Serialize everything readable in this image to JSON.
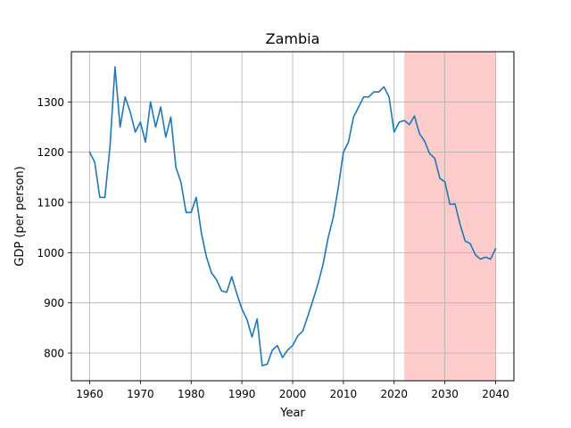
{
  "chart_data": {
    "type": "line",
    "title": "Zambia",
    "xlabel": "Year",
    "ylabel": "GDP (per person)",
    "xlim": [
      1956.4,
      2043.6
    ],
    "ylim": [
      745,
      1400
    ],
    "xticks": [
      1960,
      1970,
      1980,
      1990,
      2000,
      2010,
      2020,
      2030,
      2040
    ],
    "yticks": [
      800,
      900,
      1000,
      1100,
      1200,
      1300
    ],
    "grid": true,
    "line_color": "#1f77b4",
    "highlight": {
      "x_start": 2022,
      "x_end": 2040,
      "color": "#ff9999"
    },
    "series": [
      {
        "x": [
          1960,
          1961,
          1962,
          1963,
          1964,
          1965,
          1966,
          1967,
          1968,
          1969,
          1970,
          1971,
          1972,
          1973,
          1974,
          1975,
          1976,
          1977,
          1978,
          1979,
          1980,
          1981,
          1982,
          1983,
          1984,
          1985,
          1986,
          1987,
          1988,
          1989,
          1990,
          1991,
          1992,
          1993,
          1994,
          1995,
          1996,
          1997,
          1998,
          1999,
          2000,
          2001,
          2002,
          2003,
          2004,
          2005,
          2006,
          2007,
          2008,
          2009,
          2010,
          2011,
          2012,
          2013,
          2014,
          2015,
          2016,
          2017,
          2018,
          2019,
          2020,
          2021,
          2022,
          2023,
          2024,
          2025,
          2026,
          2027,
          2028,
          2029,
          2030,
          2031,
          2032,
          2033,
          2034,
          2035,
          2036,
          2037,
          2038,
          2039,
          2040
        ],
        "values": [
          1200,
          1180,
          1110,
          1110,
          1210,
          1370,
          1250,
          1310,
          1280,
          1240,
          1260,
          1220,
          1300,
          1250,
          1290,
          1230,
          1270,
          1170,
          1140,
          1080,
          1080,
          1110,
          1040,
          992,
          960,
          946,
          924,
          921,
          952,
          918,
          888,
          867,
          832,
          868,
          775,
          778,
          806,
          815,
          791,
          806,
          815,
          834,
          844,
          874,
          905,
          938,
          977,
          1030,
          1070,
          1130,
          1200,
          1220,
          1270,
          1290,
          1310,
          1310,
          1320,
          1320,
          1330,
          1310,
          1240,
          1260,
          1263,
          1255,
          1272,
          1237,
          1222,
          1197,
          1188,
          1148,
          1141,
          1096,
          1097,
          1056,
          1023,
          1018,
          996,
          987,
          991,
          987,
          1008
        ]
      }
    ]
  }
}
